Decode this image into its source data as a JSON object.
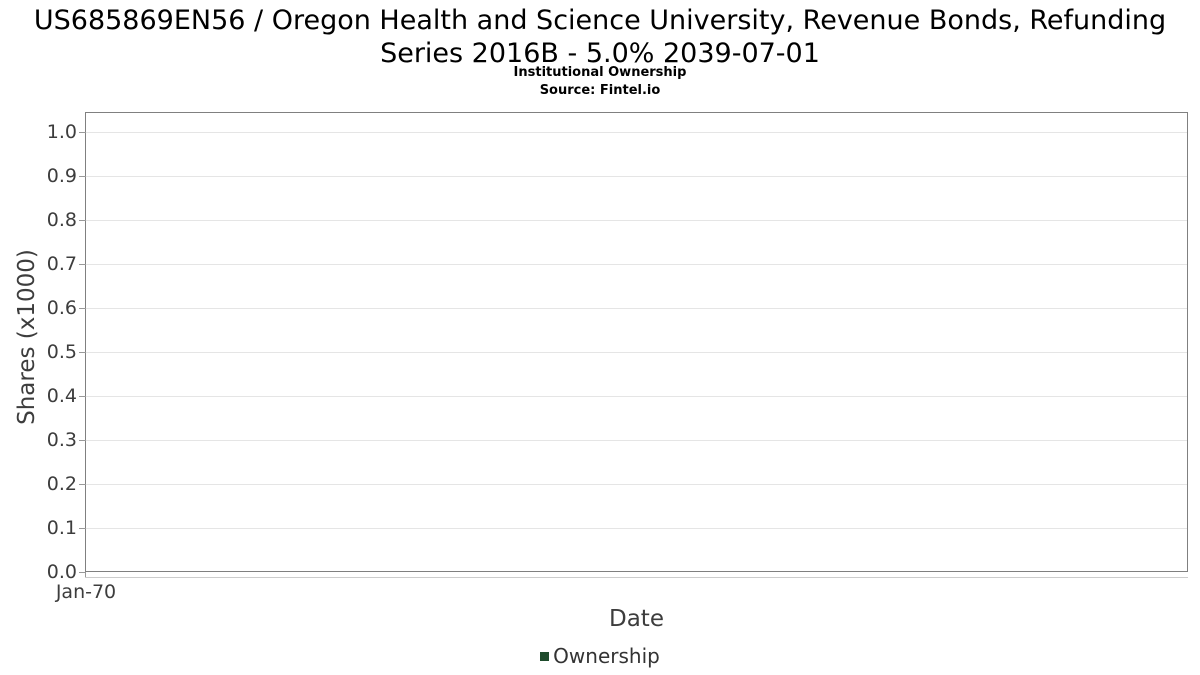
{
  "header": {
    "title_line1": "US685869EN56 / Oregon Health and Science University, Revenue Bonds, Refunding",
    "title_line2": "Series 2016B - 5.0% 2039-07-01",
    "subtitle": "Institutional Ownership",
    "source": "Source: Fintel.io"
  },
  "chart_data": {
    "type": "line",
    "title": "US685869EN56 / Oregon Health and Science University, Revenue Bonds, Refunding Series 2016B - 5.0% 2039-07-01",
    "subtitle": "Institutional Ownership",
    "source": "Source: Fintel.io",
    "xlabel": "Date",
    "ylabel": "Shares (x1000)",
    "x_tick_labels": [
      "Jan-70"
    ],
    "y_tick_labels": [
      "0.0",
      "0.1",
      "0.2",
      "0.3",
      "0.4",
      "0.5",
      "0.6",
      "0.7",
      "0.8",
      "0.9",
      "1.0"
    ],
    "y_tick_values": [
      0,
      0.1,
      0.2,
      0.3,
      0.4,
      0.5,
      0.6,
      0.7,
      0.8,
      0.9,
      1.0
    ],
    "ylim": [
      0,
      1.043
    ],
    "grid": "horizontal-only",
    "legend": {
      "position": "bottom-center",
      "entries": [
        {
          "label": "Ownership",
          "color": "#1e4b2c"
        }
      ]
    },
    "series": [
      {
        "name": "Ownership",
        "color": "#1e4b2c",
        "x": [],
        "y": []
      }
    ]
  },
  "colors": {
    "plot_border": "#808080",
    "gridline": "#e5e5e5",
    "axis_line": "#cccccc",
    "tick_mark": "#999999",
    "tick_text": "#3d3d3d",
    "title_text": "#000000",
    "legend_green": "#1e4b2c"
  }
}
